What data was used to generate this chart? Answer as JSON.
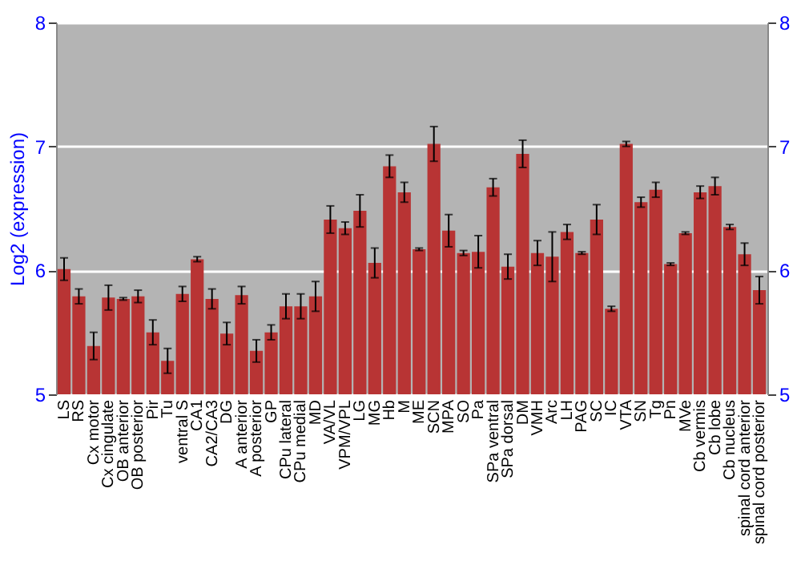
{
  "chart_data": {
    "type": "bar",
    "ylabel": "Log2 (expression)",
    "categories": [
      "LS",
      "RS",
      "Cx motor",
      "Cx cingulate",
      "OB anterior",
      "OB posterior",
      "Pir",
      "Tu",
      "ventral S",
      "CA1",
      "CA2/CA3",
      "DG",
      "A anterior",
      "A posterior",
      "GP",
      "CPu lateral",
      "CPu medial",
      "MD",
      "VA/VL",
      "VPM/VPL",
      "LG",
      "MG",
      "Hb",
      "M",
      "ME",
      "SCN",
      "MPA",
      "SO",
      "Pa",
      "SPa ventral",
      "SPa dorsal",
      "DM",
      "VMH",
      "Arc",
      "LH",
      "PAG",
      "SC",
      "IC",
      "VTA",
      "SN",
      "Tg",
      "Pn",
      "MVe",
      "Cb vermis",
      "Cb lobe",
      "Cb nucleus",
      "spinal cord anterior",
      "spinal cord posterior"
    ],
    "series": [
      {
        "color": "#b83434",
        "values": [
          6.01,
          5.79,
          5.39,
          5.78,
          5.77,
          5.79,
          5.5,
          5.27,
          5.81,
          6.09,
          5.77,
          5.49,
          5.8,
          5.35,
          5.5,
          5.71,
          5.71,
          5.79,
          6.41,
          6.34,
          6.48,
          6.06,
          6.84,
          6.63,
          6.17,
          7.02,
          6.32,
          6.14,
          6.15,
          6.67,
          6.03,
          6.94,
          6.14,
          6.11,
          6.31,
          6.14,
          6.41,
          5.69,
          7.02,
          6.55,
          6.65,
          6.05,
          6.3,
          6.63,
          6.68,
          6.35,
          6.13,
          5.84
        ],
        "errors": [
          0.09,
          0.06,
          0.11,
          0.1,
          0.01,
          0.05,
          0.1,
          0.1,
          0.06,
          0.02,
          0.08,
          0.09,
          0.07,
          0.09,
          0.06,
          0.1,
          0.1,
          0.12,
          0.11,
          0.05,
          0.13,
          0.12,
          0.09,
          0.08,
          0.01,
          0.14,
          0.13,
          0.02,
          0.13,
          0.07,
          0.1,
          0.11,
          0.1,
          0.2,
          0.06,
          0.01,
          0.12,
          0.02,
          0.02,
          0.04,
          0.06,
          0.01,
          0.01,
          0.05,
          0.07,
          0.02,
          0.09,
          0.11
        ]
      }
    ],
    "ylim": [
      5,
      8
    ],
    "yticks": [
      5,
      6,
      7,
      8
    ],
    "y2lim": [
      5,
      8
    ],
    "y2ticks": [
      5,
      6,
      7,
      8
    ],
    "grid": "y"
  }
}
